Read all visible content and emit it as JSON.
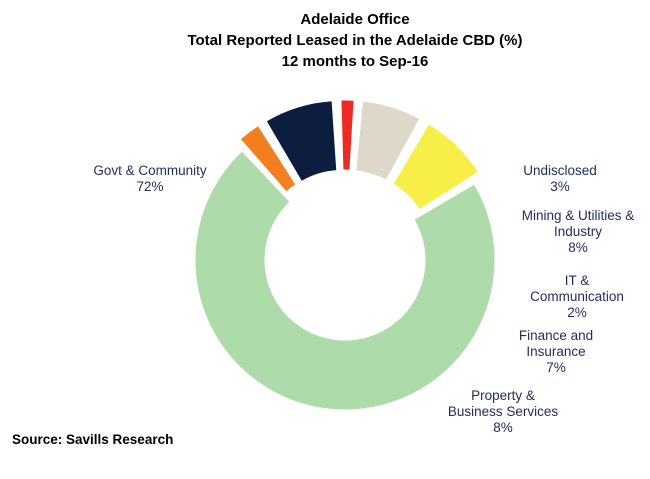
{
  "chart_data": {
    "type": "pie",
    "style": "donut",
    "title": [
      "Adelaide Office",
      "Total Reported Leased in the Adelaide CBD (%)",
      "12 months to Sep-16"
    ],
    "slices": [
      {
        "label": [
          "Govt & Community"
        ],
        "value_label": "72%",
        "value": 72,
        "color": "#addcaa"
      },
      {
        "label": [
          "Undisclosed"
        ],
        "value_label": "3%",
        "value": 3,
        "color": "#f47f20"
      },
      {
        "label": [
          "Mining & Utilities &",
          "Industry"
        ],
        "value_label": "8%",
        "value": 8,
        "color": "#0d1d3f"
      },
      {
        "label": [
          "IT &",
          "Communication"
        ],
        "value_label": "2%",
        "value": 2,
        "color": "#ee2a24"
      },
      {
        "label": [
          "Finance and",
          "Insurance"
        ],
        "value_label": "7%",
        "value": 7,
        "color": "#ded8c8"
      },
      {
        "label": [
          "Property &",
          "Business Services"
        ],
        "value_label": "8%",
        "value": 8,
        "color": "#f8ee48"
      }
    ],
    "source": "Source: Savills Research"
  }
}
